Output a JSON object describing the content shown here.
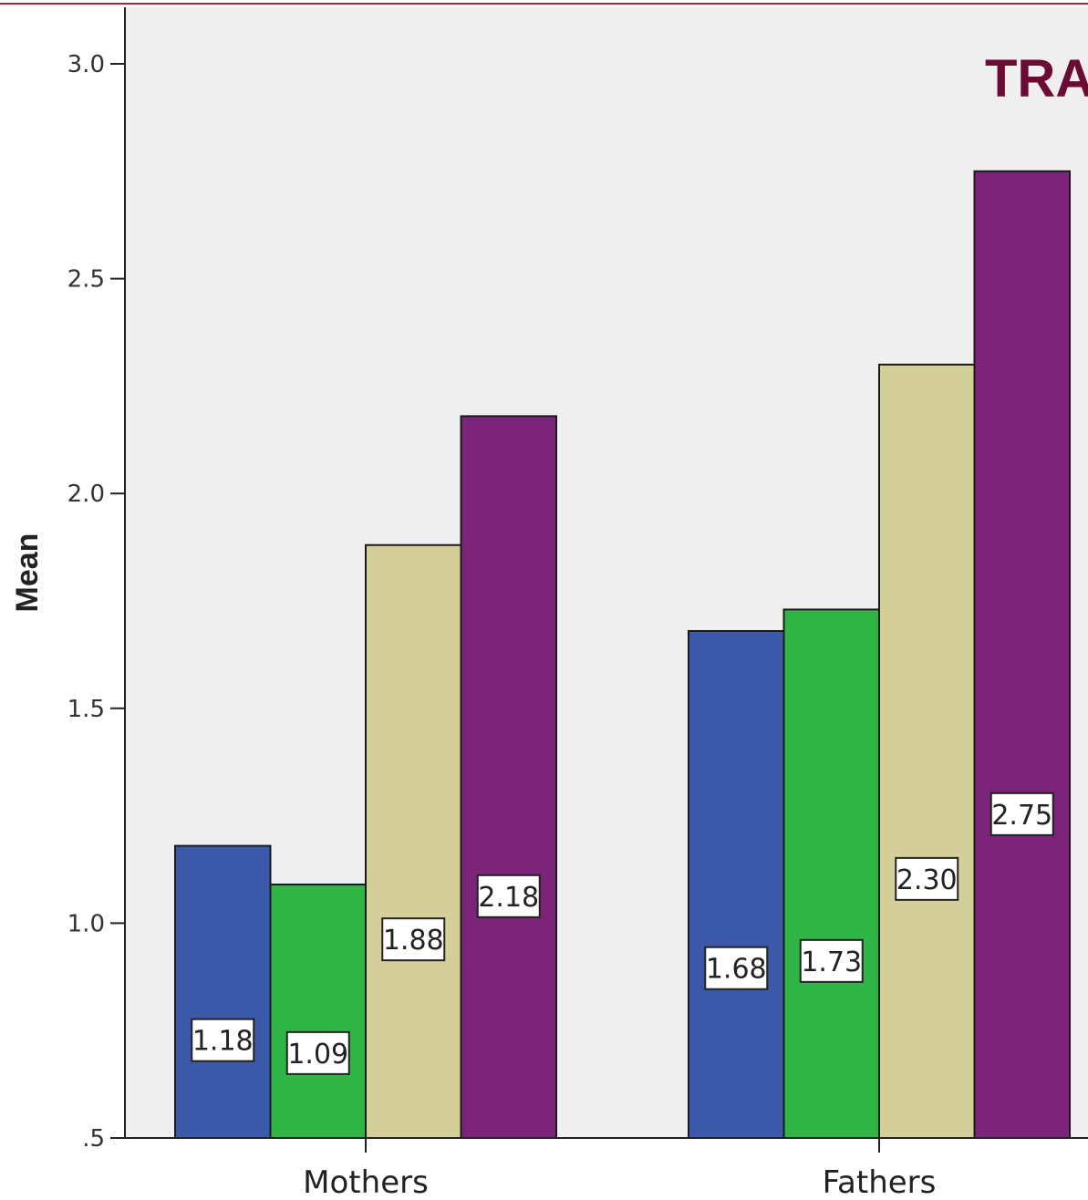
{
  "chart_data": {
    "type": "bar",
    "title": "TRA",
    "ylabel": "Mean",
    "xlabel": "",
    "ylim": [
      0.5,
      3.1
    ],
    "yticks": [
      {
        "value": 0.5,
        "label": ".5"
      },
      {
        "value": 1.0,
        "label": "1.0"
      },
      {
        "value": 1.5,
        "label": "1.5"
      },
      {
        "value": 2.0,
        "label": "2.0"
      },
      {
        "value": 2.5,
        "label": "2.5"
      },
      {
        "value": 3.0,
        "label": "3.0"
      }
    ],
    "categories": [
      "Mothers",
      "Fathers"
    ],
    "series": [
      {
        "color": "#3b58a9",
        "values": [
          1.18,
          1.68
        ],
        "labels": [
          "1.18",
          "1.68"
        ]
      },
      {
        "color": "#2fb446",
        "values": [
          1.09,
          1.73
        ],
        "labels": [
          "1.09",
          "1.73"
        ]
      },
      {
        "color": "#d4cf98",
        "values": [
          1.88,
          2.3
        ],
        "labels": [
          "1.88",
          "2.30"
        ]
      },
      {
        "color": "#7b2479",
        "values": [
          2.18,
          2.75
        ],
        "labels": [
          "2.18",
          "2.75"
        ]
      }
    ],
    "grid": false,
    "plot_background": "#efefef",
    "top_rule_color": "#a8282e"
  }
}
